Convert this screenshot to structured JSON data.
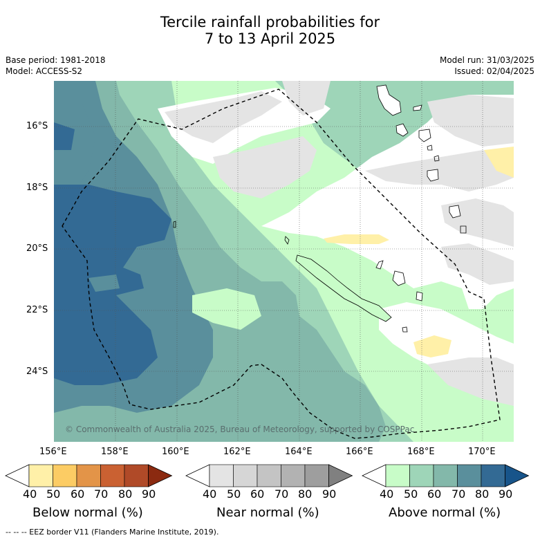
{
  "title_line1": "Tercile rainfall probabilities for",
  "title_line2": "7 to 13 April 2025",
  "base_period": "Base period: 1981-2018",
  "model": "Model: ACCESS-S2",
  "model_run": "Model run: 31/03/2025",
  "issued": "Issued: 02/04/2025",
  "copyright": "© Commonwealth of Australia 2025, Bureau of Meteorology, supported by COSPPac",
  "lat_labels": [
    "16°S",
    "18°S",
    "20°S",
    "22°S",
    "24°S"
  ],
  "lon_labels": [
    "156°E",
    "158°E",
    "160°E",
    "162°E",
    "164°E",
    "166°E",
    "168°E",
    "170°E"
  ],
  "colorbars": [
    {
      "title": "Below normal (%)",
      "ticks": [
        "40",
        "50",
        "60",
        "70",
        "80",
        "90"
      ],
      "colors": [
        "#ffffff",
        "#fff0a8",
        "#fccc64",
        "#e39448",
        "#ca6132",
        "#b04a28",
        "#8b2a10"
      ]
    },
    {
      "title": "Near normal (%)",
      "ticks": [
        "40",
        "50",
        "60",
        "70",
        "80",
        "90"
      ],
      "colors": [
        "#ffffff",
        "#e4e4e4",
        "#d6d6d6",
        "#c4c4c4",
        "#b2b2b2",
        "#9e9e9e",
        "#808080"
      ]
    },
    {
      "title": "Above normal (%)",
      "ticks": [
        "40",
        "50",
        "60",
        "70",
        "80",
        "90"
      ],
      "colors": [
        "#ffffff",
        "#c8fcc8",
        "#9ed5b8",
        "#83b8aa",
        "#5a8f9c",
        "#336a94",
        "#17548a"
      ]
    }
  ],
  "footer": "-- -- -- EEZ border V11 (Flanders Marine Institute, 2019)."
}
